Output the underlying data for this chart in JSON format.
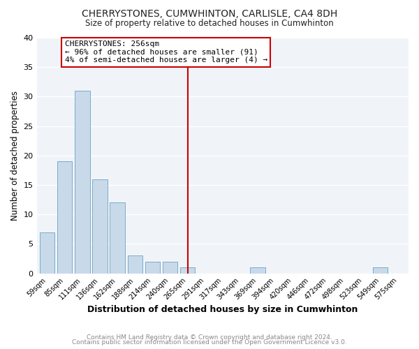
{
  "title": "CHERRYSTONES, CUMWHINTON, CARLISLE, CA4 8DH",
  "subtitle": "Size of property relative to detached houses in Cumwhinton",
  "xlabel": "Distribution of detached houses by size in Cumwhinton",
  "ylabel": "Number of detached properties",
  "footer_line1": "Contains HM Land Registry data © Crown copyright and database right 2024.",
  "footer_line2": "Contains public sector information licensed under the Open Government Licence v3.0.",
  "bin_labels": [
    "59sqm",
    "85sqm",
    "111sqm",
    "136sqm",
    "162sqm",
    "188sqm",
    "214sqm",
    "240sqm",
    "265sqm",
    "291sqm",
    "317sqm",
    "343sqm",
    "369sqm",
    "394sqm",
    "420sqm",
    "446sqm",
    "472sqm",
    "498sqm",
    "523sqm",
    "549sqm",
    "575sqm"
  ],
  "bar_heights": [
    7,
    19,
    31,
    16,
    12,
    3,
    2,
    2,
    1,
    0,
    0,
    0,
    1,
    0,
    0,
    0,
    0,
    0,
    0,
    1,
    0
  ],
  "bar_color": "#c8daea",
  "bar_edge_color": "#7aaac8",
  "ylim": [
    0,
    40
  ],
  "yticks": [
    0,
    5,
    10,
    15,
    20,
    25,
    30,
    35,
    40
  ],
  "cherrystones_bin_index": 8,
  "vline_color": "#cc0000",
  "annotation_title": "CHERRYSTONES: 256sqm",
  "annotation_line1": "← 96% of detached houses are smaller (91)",
  "annotation_line2": "4% of semi-detached houses are larger (4) →",
  "annotation_box_color": "#ffffff",
  "annotation_box_edge": "#cc0000",
  "bg_color": "#ffffff",
  "plot_bg_color": "#f0f4f8",
  "grid_color": "#ffffff"
}
